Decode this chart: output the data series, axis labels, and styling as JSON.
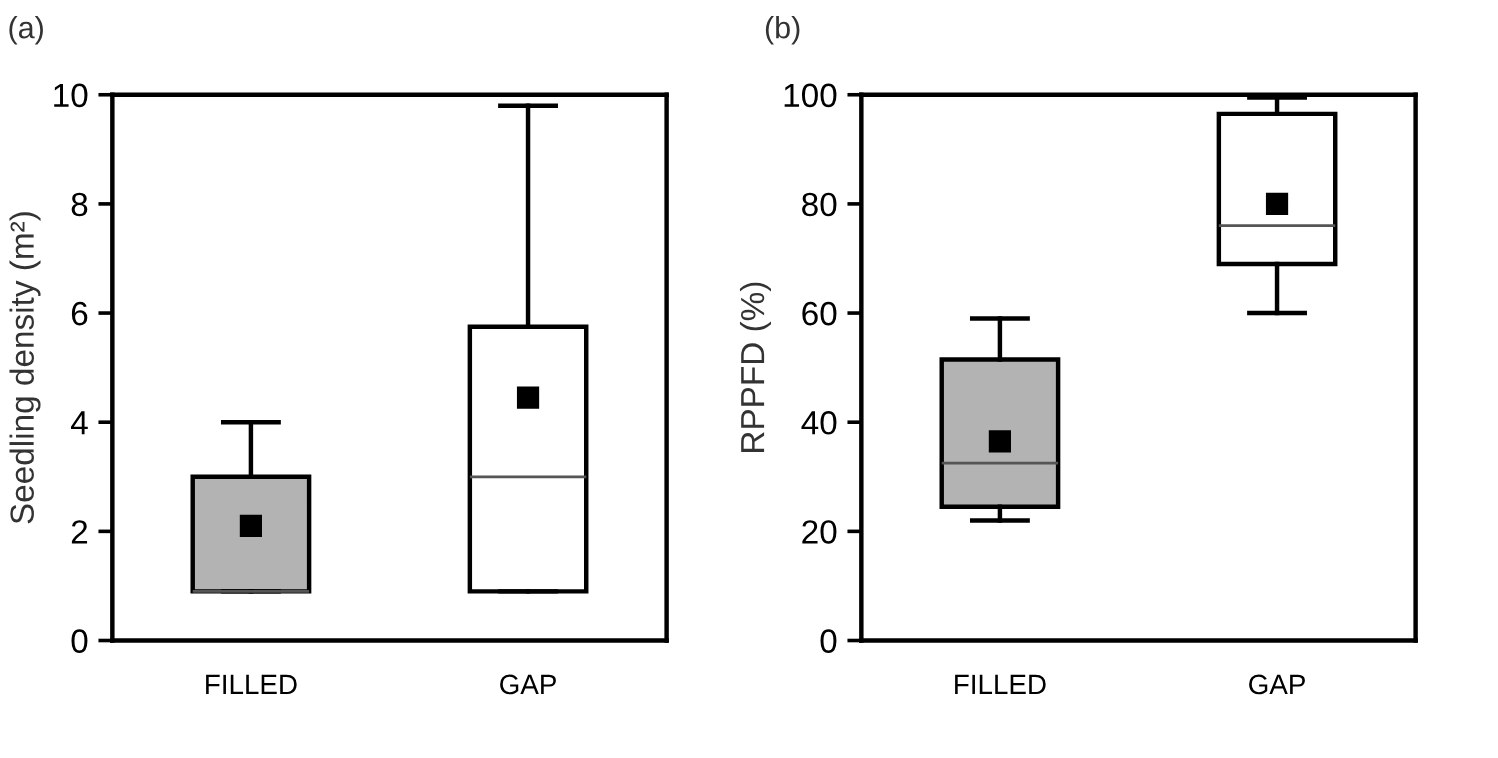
{
  "chart_data": [
    {
      "type": "box",
      "title": "(a)",
      "ylabel": "Seedling density (m²)",
      "categories": [
        "FILLED",
        "GAP"
      ],
      "boxes": [
        {
          "low": 0.9,
          "q1": 0.9,
          "median": 0.9,
          "q3": 3.0,
          "high": 4.0,
          "mean": 2.1
        },
        {
          "low": 0.9,
          "q1": 0.9,
          "median": 3.0,
          "q3": 5.75,
          "high": 9.8,
          "mean": 4.45
        }
      ],
      "colors": [
        "#b3b3b3",
        "#ffffff"
      ],
      "ylim": [
        0,
        10
      ],
      "yticks": [
        0,
        2,
        4,
        6,
        8,
        10
      ],
      "marker": "square"
    },
    {
      "type": "box",
      "title": "(b)",
      "ylabel": "RPPFD (%)",
      "categories": [
        "FILLED",
        "GAP"
      ],
      "boxes": [
        {
          "low": 22,
          "q1": 24.5,
          "median": 32.5,
          "q3": 51.5,
          "high": 59,
          "mean": 36.5
        },
        {
          "low": 60,
          "q1": 69,
          "median": 76,
          "q3": 96.5,
          "high": 99.5,
          "mean": 80
        }
      ],
      "colors": [
        "#b3b3b3",
        "#ffffff"
      ],
      "ylim": [
        0,
        100
      ],
      "yticks": [
        0,
        20,
        40,
        60,
        80,
        100
      ],
      "marker": "square"
    }
  ]
}
